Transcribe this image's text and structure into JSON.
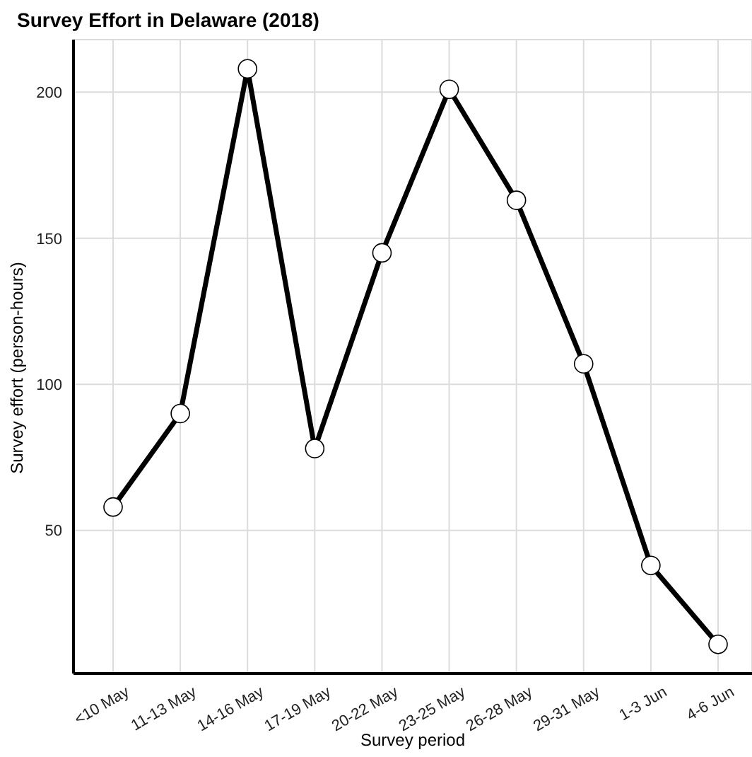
{
  "chart_data": {
    "type": "line",
    "title": "Survey Effort in Delaware (2018)",
    "xlabel": "Survey period",
    "ylabel": "Survey effort (person-hours)",
    "categories": [
      "<10 May",
      "11-13 May",
      "14-16 May",
      "17-19 May",
      "20-22 May",
      "23-25 May",
      "26-28 May",
      "29-31 May",
      "1-3 Jun",
      "4-6 Jun"
    ],
    "series": [
      {
        "color": "#000000",
        "values": [
          58,
          90,
          208,
          78,
          145,
          201,
          163,
          107,
          38,
          11
        ]
      }
    ],
    "ylim": [
      1,
      218
    ],
    "yticks": [
      50,
      100,
      150,
      200
    ],
    "grid": true,
    "marker": "circle",
    "line_style": "solid"
  }
}
